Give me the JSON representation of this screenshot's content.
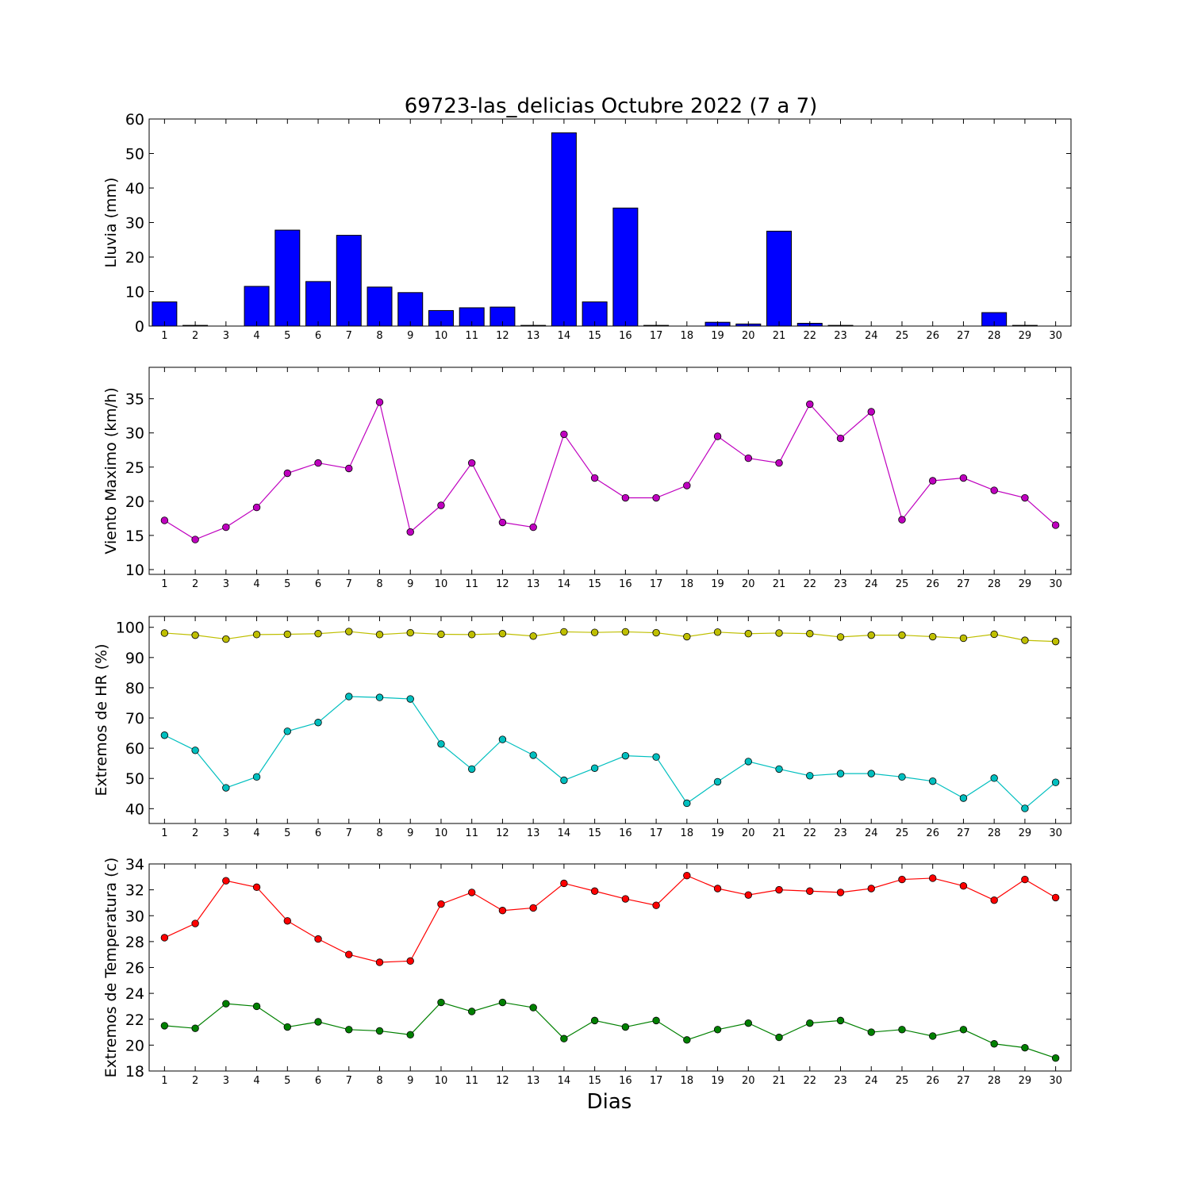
{
  "chart_data": {
    "title": "69723-las_delicias Octubre 2022  (7 a 7)",
    "shared_xlabel": "Dias",
    "days": [
      1,
      2,
      3,
      4,
      5,
      6,
      7,
      8,
      9,
      10,
      11,
      12,
      13,
      14,
      15,
      16,
      17,
      18,
      19,
      20,
      21,
      22,
      23,
      24,
      25,
      26,
      27,
      28,
      29,
      30
    ],
    "panels": [
      {
        "type": "bar",
        "ylabel": "Lluvia (mm)",
        "ylim": [
          0,
          60
        ],
        "yticks": [
          0,
          10,
          20,
          30,
          40,
          50,
          60
        ],
        "series": [
          {
            "color": "#0000ff",
            "values": [
              7.0,
              0.2,
              0,
              11.5,
              27.8,
              12.9,
              26.3,
              11.3,
              9.7,
              4.5,
              5.3,
              5.5,
              0.2,
              56.0,
              7.0,
              34.2,
              0.2,
              0,
              1.1,
              0.6,
              27.5,
              0.8,
              0.2,
              0,
              0,
              0,
              0,
              3.9,
              0.2,
              0
            ]
          }
        ]
      },
      {
        "type": "line",
        "ylabel": "Viento Maximo (km/h)",
        "ylim": [
          9.3,
          39.6
        ],
        "yticks": [
          10,
          15,
          20,
          25,
          30,
          35
        ],
        "series": [
          {
            "color": "#bf00bf",
            "values": [
              17.2,
              14.4,
              16.2,
              19.1,
              24.1,
              25.6,
              24.8,
              34.5,
              15.5,
              19.4,
              25.6,
              16.9,
              16.2,
              29.8,
              23.4,
              20.5,
              20.5,
              22.3,
              29.5,
              26.3,
              25.6,
              34.2,
              29.2,
              33.1,
              17.3,
              23.0,
              23.4,
              21.6,
              20.5,
              16.5
            ]
          }
        ]
      },
      {
        "type": "line",
        "ylabel": "Extremos de HR (%)",
        "ylim": [
          35.1,
          103.6
        ],
        "yticks": [
          40,
          50,
          60,
          70,
          80,
          90,
          100
        ],
        "series": [
          {
            "color": "#bfbf00",
            "values": [
              98.1,
              97.4,
              96.1,
              97.6,
              97.7,
              97.9,
              98.6,
              97.6,
              98.2,
              97.7,
              97.6,
              97.9,
              97.1,
              98.5,
              98.3,
              98.5,
              98.2,
              96.9,
              98.4,
              97.9,
              98.1,
              97.9,
              96.8,
              97.4,
              97.4,
              96.9,
              96.4,
              97.7,
              95.7,
              95.3
            ]
          },
          {
            "color": "#00bfbf",
            "values": [
              64.3,
              59.3,
              46.9,
              50.5,
              65.6,
              68.5,
              77.1,
              76.8,
              76.3,
              61.4,
              53.1,
              62.9,
              57.7,
              49.4,
              53.4,
              57.5,
              57.1,
              41.8,
              48.9,
              55.6,
              53.1,
              50.9,
              51.6,
              51.6,
              50.5,
              49.1,
              43.5,
              50.1,
              40.1,
              48.7
            ]
          }
        ]
      },
      {
        "type": "line",
        "ylabel": "Extremos de Temperatura (c)",
        "ylim": [
          18,
          34
        ],
        "yticks": [
          18,
          20,
          22,
          24,
          26,
          28,
          30,
          32,
          34
        ],
        "series": [
          {
            "color": "#ff0000",
            "values": [
              28.3,
              29.4,
              32.7,
              32.2,
              29.6,
              28.2,
              27.0,
              26.4,
              26.5,
              30.9,
              31.8,
              30.4,
              30.6,
              32.5,
              31.9,
              31.3,
              30.8,
              33.1,
              32.1,
              31.6,
              32.0,
              31.9,
              31.8,
              32.1,
              32.8,
              32.9,
              32.3,
              31.2,
              32.8,
              31.4
            ]
          },
          {
            "color": "#008000",
            "values": [
              21.5,
              21.3,
              23.2,
              23.0,
              21.4,
              21.8,
              21.2,
              21.1,
              20.8,
              23.3,
              22.6,
              23.3,
              22.9,
              20.5,
              21.9,
              21.4,
              21.9,
              20.4,
              21.2,
              21.7,
              20.6,
              21.7,
              21.9,
              21.0,
              21.2,
              20.7,
              21.2,
              20.1,
              19.8,
              19.0
            ]
          }
        ]
      }
    ]
  }
}
